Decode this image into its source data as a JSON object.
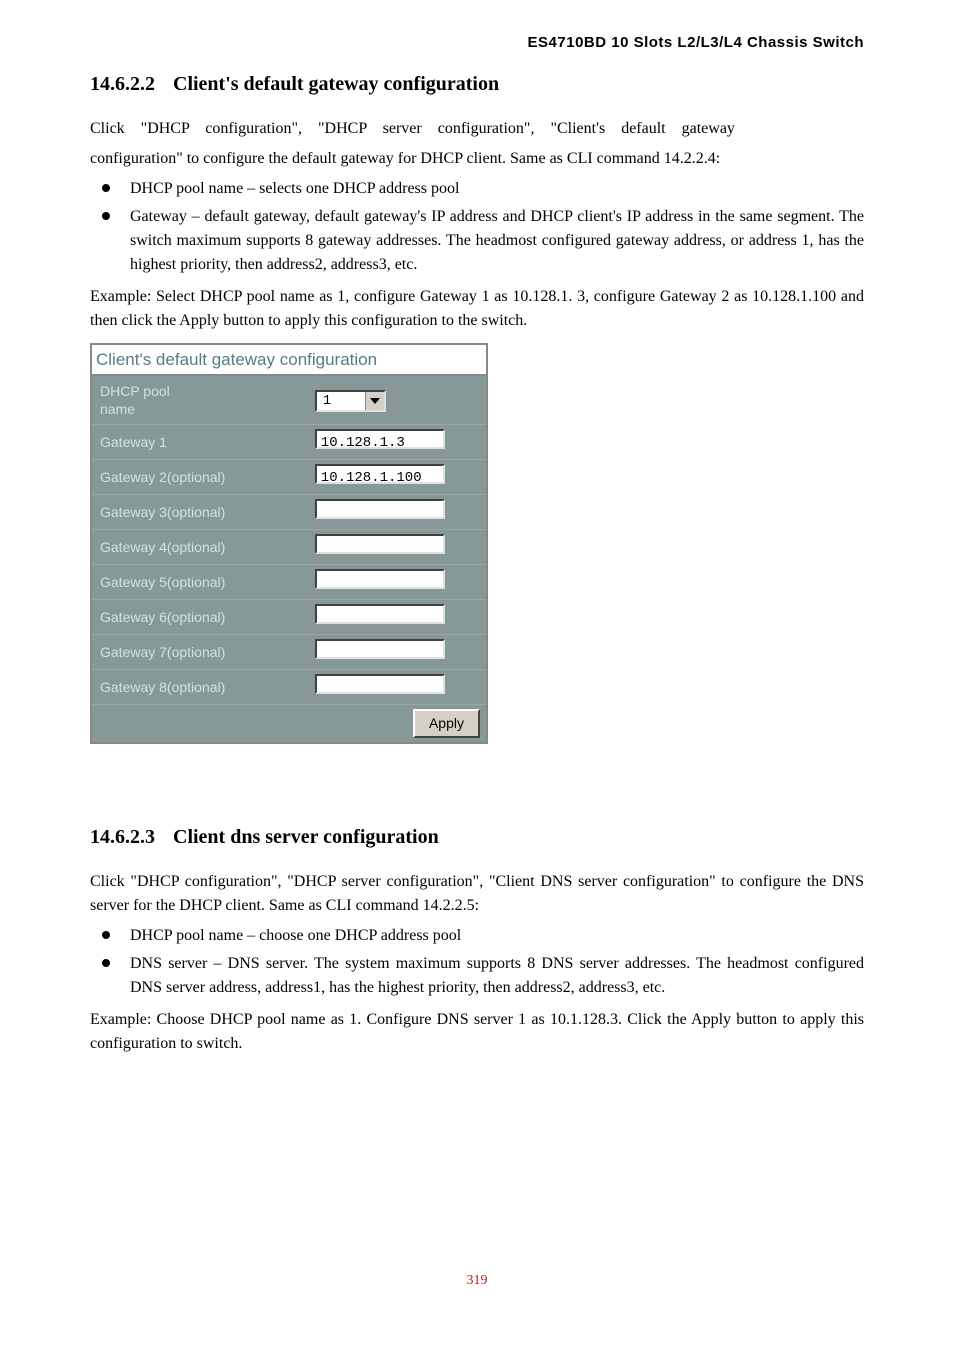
{
  "header": "ES4710BD 10 Slots L2/L3/L4 Chassis Switch",
  "sections": {
    "s1": {
      "num": "14.6.2.2",
      "title": "Client's default gateway configuration",
      "p1a": "Click \"DHCP configuration\", \"DHCP server configuration\", \"Client's default gateway",
      "p1b": "configuration\" to configure the default gateway for DHCP client. Same as CLI command 14.2.2.4:",
      "b1": "DHCP pool name – selects one DHCP address pool",
      "b2": "Gateway – default gateway, default gateway's IP address and DHCP client's IP address in the same segment. The switch maximum supports 8 gateway addresses. The headmost configured gateway address, or address 1, has the highest priority, then address2, address3, etc.",
      "ex": "Example: Select DHCP pool name as 1, configure Gateway 1 as 10.128.1. 3, configure Gateway 2 as 10.128.1.100 and then click the Apply button to apply this configuration to the switch."
    },
    "s2": {
      "num": "14.6.2.3",
      "title": "Client dns server configuration",
      "p1": "Click \"DHCP configuration\", \"DHCP server configuration\", \"Client DNS server configuration\" to configure the DNS server for the DHCP client. Same as CLI command 14.2.2.5:",
      "b1": "DHCP pool name – choose one DHCP address pool",
      "b2": "DNS server – DNS server. The system maximum supports 8 DNS server addresses. The headmost configured DNS server address, address1, has the highest priority, then address2, address3, etc.",
      "ex": "Example: Choose DHCP pool name as 1. Configure DNS server 1 as 10.1.128.3. Click the Apply button to apply this configuration to switch."
    }
  },
  "config_table": {
    "title": "Client's default gateway configuration",
    "rows": {
      "pool_label": "DHCP pool name",
      "pool_value": "1",
      "gw1_label": "Gateway 1",
      "gw1_value": "10.128.1.3",
      "gw2_label": "Gateway 2(optional)",
      "gw2_value": "10.128.1.100",
      "gw3_label": "Gateway 3(optional)",
      "gw3_value": "",
      "gw4_label": "Gateway 4(optional)",
      "gw4_value": "",
      "gw5_label": "Gateway 5(optional)",
      "gw5_value": "",
      "gw6_label": "Gateway 6(optional)",
      "gw6_value": "",
      "gw7_label": "Gateway 7(optional)",
      "gw7_value": "",
      "gw8_label": "Gateway 8(optional)",
      "gw8_value": ""
    },
    "apply_label": "Apply"
  },
  "page_number": "319"
}
